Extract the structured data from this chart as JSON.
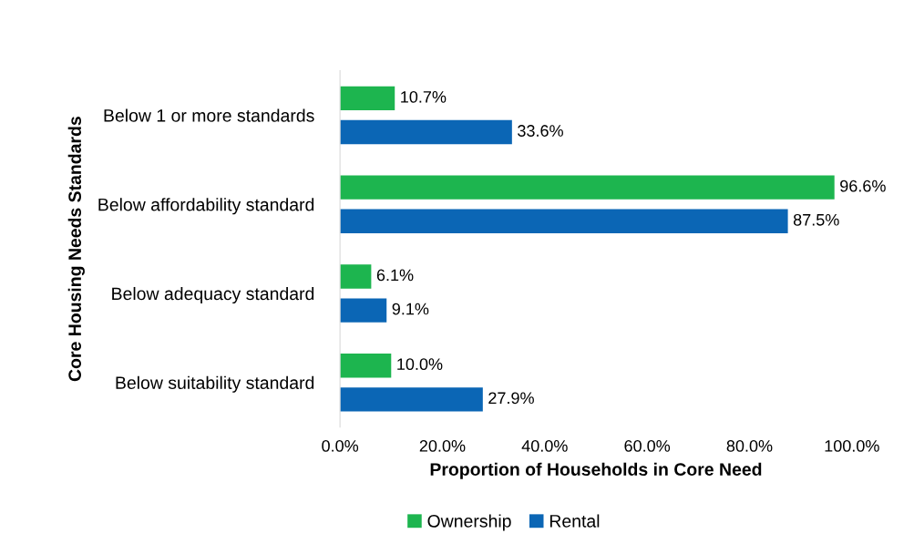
{
  "chart_data": {
    "type": "bar",
    "orientation": "horizontal",
    "xlabel": "Proportion of Households in Core Need",
    "ylabel": "Core Housing Needs Standards",
    "categories": [
      "Below 1 or more standards",
      "Below affordability standard",
      "Below adequacy standard",
      "Below suitability standard"
    ],
    "series": [
      {
        "name": "Ownership",
        "color": "#1db54f",
        "values": [
          10.7,
          96.6,
          6.1,
          10.0
        ],
        "value_labels": [
          "10.7%",
          "96.6%",
          "6.1%",
          "10.0%"
        ]
      },
      {
        "name": "Rental",
        "color": "#0b66b5",
        "values": [
          33.6,
          87.5,
          9.1,
          27.9
        ],
        "value_labels": [
          "33.6%",
          "87.5%",
          "9.1%",
          "27.9%"
        ]
      }
    ],
    "xlim": [
      0,
      100
    ],
    "xticks": [
      {
        "value": 0,
        "label": "0.0%"
      },
      {
        "value": 20,
        "label": "20.0%"
      },
      {
        "value": 40,
        "label": "40.0%"
      },
      {
        "value": 60,
        "label": "60.0%"
      },
      {
        "value": 80,
        "label": "80.0%"
      },
      {
        "value": 100,
        "label": "100.0%"
      }
    ],
    "grid": false,
    "legend": "bottom"
  }
}
